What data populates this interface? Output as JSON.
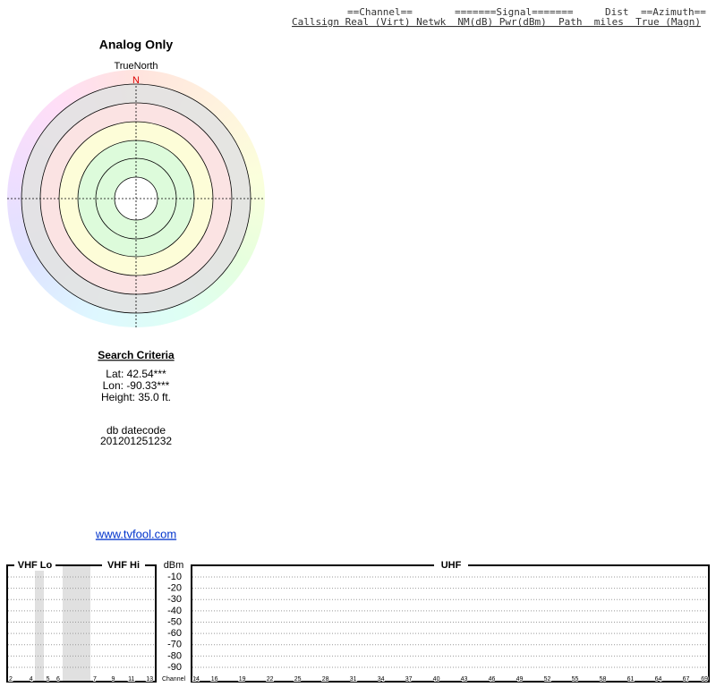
{
  "header": {
    "group_row": [
      "==Channel==",
      "=======Signal=======",
      "Dist",
      "==Azimuth=="
    ],
    "column_row": "Callsign Real (Virt) Netwk  NM(dB) Pwr(dBm)  Path  miles  True (Magn)"
  },
  "radar": {
    "title": "Analog Only",
    "north_label": "TrueNorth",
    "north_marker": "N"
  },
  "search_criteria": {
    "heading": "Search Criteria",
    "lat": "Lat: 42.54***",
    "lon": "Lon: -90.33***",
    "height": "Height: 35.0 ft.",
    "datecode_label": "db datecode",
    "datecode": "201201251232"
  },
  "link": "www.tvfool.com",
  "spectrum": {
    "vhf_lo_label": "VHF Lo",
    "vhf_hi_label": "VHF Hi",
    "uhf_label": "UHF",
    "unit_label": "dBm",
    "channel_label": "Channel",
    "dbm_ticks": [
      -10,
      -20,
      -30,
      -40,
      -50,
      -60,
      -70,
      -80,
      -90
    ],
    "vhf_lo_channels": [
      2,
      4,
      5,
      6
    ],
    "vhf_hi_channels": [
      7,
      9,
      11,
      13
    ],
    "uhf_channels": [
      14,
      16,
      19,
      22,
      25,
      28,
      31,
      34,
      37,
      40,
      43,
      46,
      49,
      52,
      55,
      58,
      61,
      64,
      67,
      69
    ]
  }
}
